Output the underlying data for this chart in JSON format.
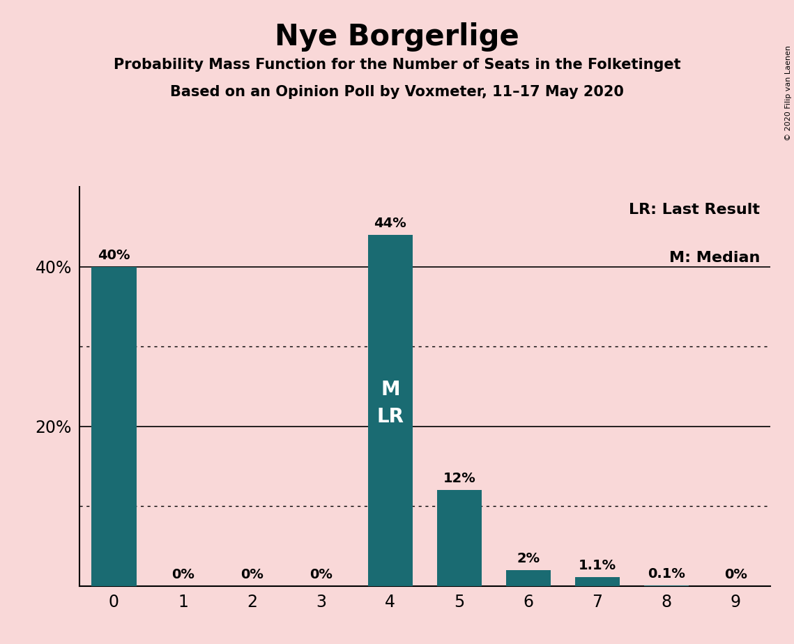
{
  "title": "Nye Borgerlige",
  "subtitle1": "Probability Mass Function for the Number of Seats in the Folketinget",
  "subtitle2": "Based on an Opinion Poll by Voxmeter, 11–17 May 2020",
  "copyright": "© 2020 Filip van Laenen",
  "categories": [
    0,
    1,
    2,
    3,
    4,
    5,
    6,
    7,
    8,
    9
  ],
  "values": [
    0.4,
    0.0,
    0.0,
    0.0,
    0.44,
    0.12,
    0.02,
    0.011,
    0.001,
    0.0
  ],
  "bar_labels": [
    "40%",
    "0%",
    "0%",
    "0%",
    "44%",
    "12%",
    "2%",
    "1.1%",
    "0.1%",
    "0%"
  ],
  "bar_color": "#1a6b72",
  "background_color": "#f9d8d8",
  "median_bar": 4,
  "last_result_bar": 4,
  "legend_lr": "LR: Last Result",
  "legend_m": "M: Median",
  "yticks": [
    0.2,
    0.4
  ],
  "ytick_labels": [
    "20%",
    "40%"
  ],
  "ylim": [
    0,
    0.5
  ],
  "solid_gridlines": [
    0.2,
    0.4
  ],
  "dotted_gridlines": [
    0.1,
    0.3
  ]
}
